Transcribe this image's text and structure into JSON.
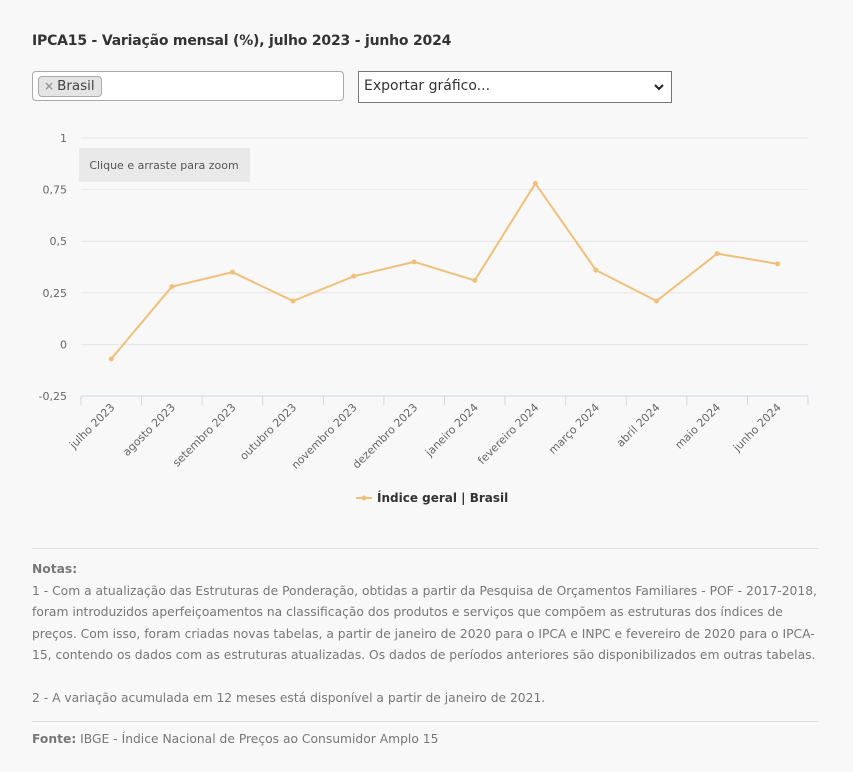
{
  "title": "IPCA15 - Variação mensal (%), julho 2023 - junho 2024",
  "filter": {
    "chip_label": "Brasil",
    "chip_remove": "×"
  },
  "export": {
    "selected": "Exportar gráfico..."
  },
  "zoom_hint": "Clique e arraste para zoom",
  "colors": {
    "series": "#f0c07a",
    "background": "#f8f8f8",
    "grid": "#e6e6e6"
  },
  "chart_data": {
    "type": "line",
    "categories": [
      "julho 2023",
      "agosto 2023",
      "setembro 2023",
      "outubro 2023",
      "novembro 2023",
      "dezembro 2023",
      "janeiro 2024",
      "fevereiro 2024",
      "março 2024",
      "abril 2024",
      "maio 2024",
      "junho 2024"
    ],
    "series": [
      {
        "name": "Índice geral | Brasil",
        "values": [
          -0.07,
          0.28,
          0.35,
          0.21,
          0.33,
          0.4,
          0.31,
          0.78,
          0.36,
          0.21,
          0.44,
          0.39
        ]
      }
    ],
    "yticks": [
      -0.25,
      0,
      0.25,
      0.5,
      0.75,
      1
    ],
    "ytick_labels": [
      "-0,25",
      "0",
      "0,25",
      "0,5",
      "0,75",
      "1"
    ],
    "ylim": [
      -0.25,
      1
    ],
    "grid": true,
    "legend": "bottom-center"
  },
  "notes": {
    "heading": "Notas:",
    "note1": "1 - Com a atualização das Estruturas de Ponderação, obtidas a partir da Pesquisa de Orçamentos Familiares - POF - 2017-2018, foram introduzidos aperfeiçoamentos na classificação dos produtos e serviços que compõem as estruturas dos índices de preços. Com isso, foram criadas novas tabelas, a partir de janeiro de 2020 para o IPCA e INPC e fevereiro de 2020 para o IPCA-15, contendo os dados com as estruturas atualizadas. Os dados de períodos anteriores são disponibilizados em outras tabelas.",
    "note2": "2 - A variação acumulada em 12 meses está disponível a partir de janeiro de 2021."
  },
  "source": {
    "label": "Fonte:",
    "text": "IBGE - Índice Nacional de Preços ao Consumidor Amplo 15"
  }
}
